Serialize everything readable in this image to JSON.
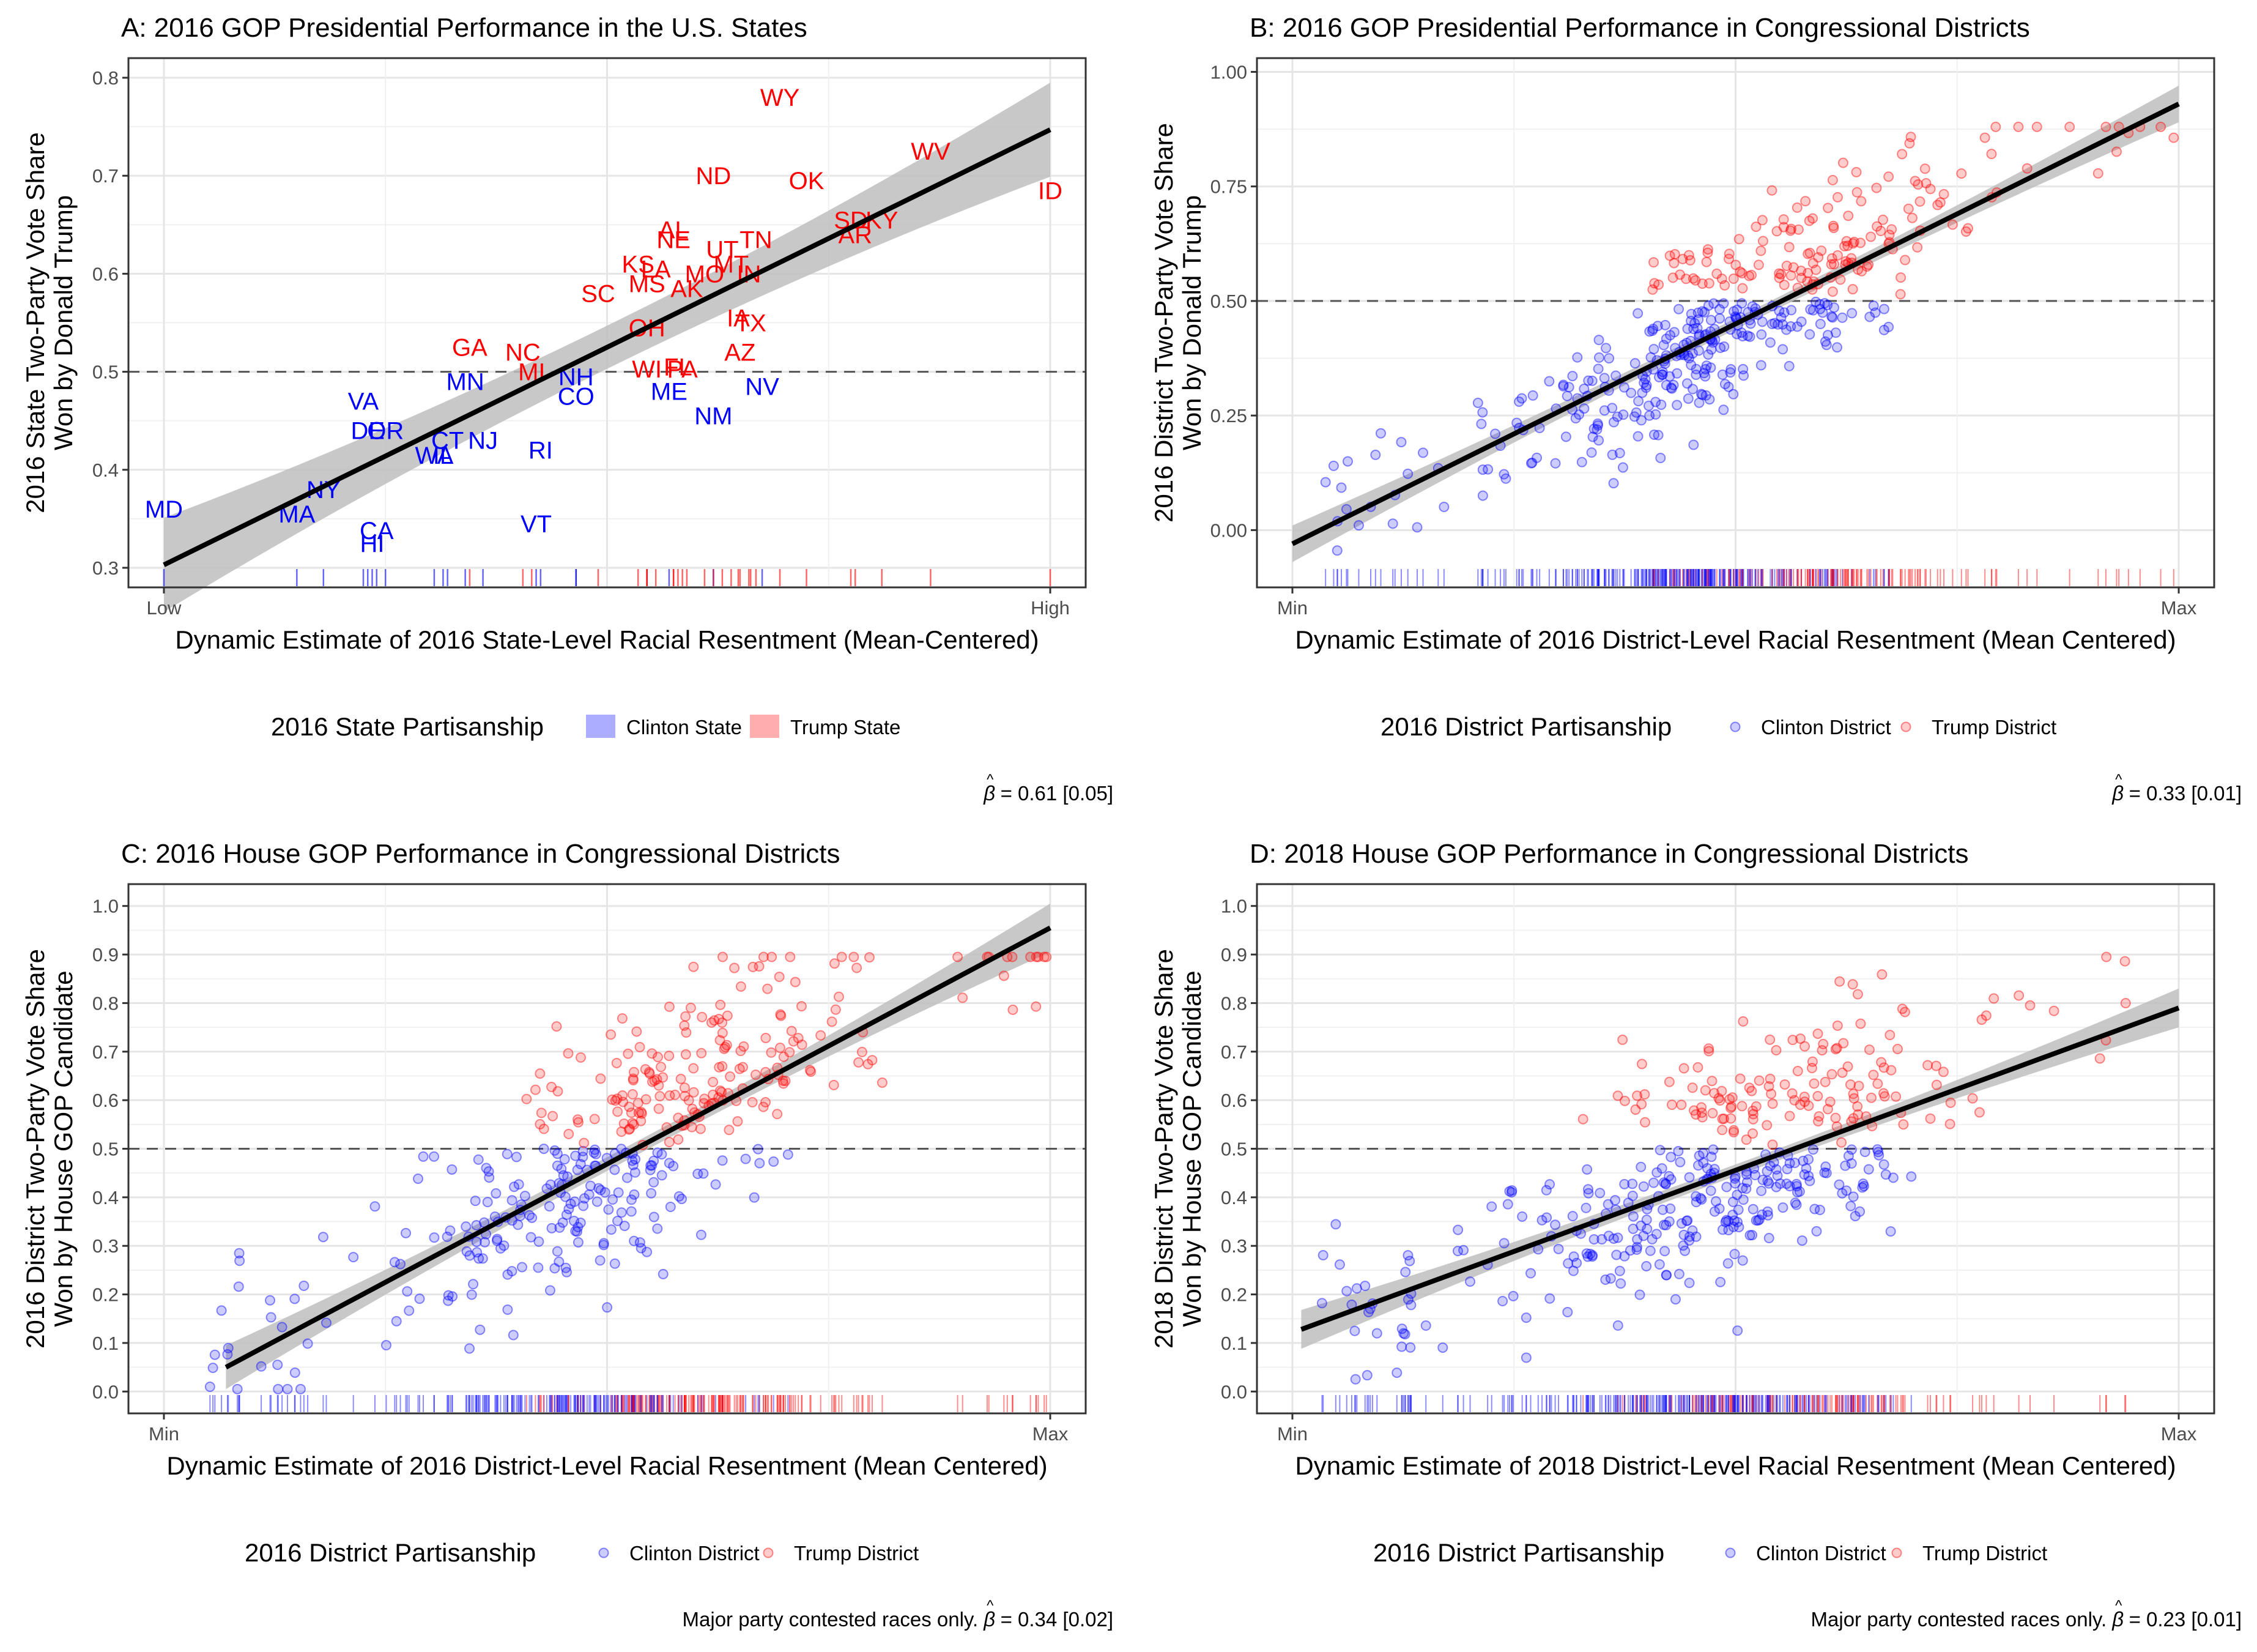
{
  "colors": {
    "clinton": "#0000ff",
    "trump": "#ff0000",
    "fit": "#000000",
    "band": "#bebebe",
    "grid": "#e5e5e5"
  },
  "chart_data": [
    {
      "panel": "A",
      "type": "scatter",
      "title": "A: 2016 GOP Presidential Performance in the U.S. States",
      "xlabel": "Dynamic Estimate of 2016 State-Level Racial Resentment (Mean-Centered)",
      "ylabel_lines": [
        "2016 State Two-Party Vote Share",
        "Won by Donald Trump"
      ],
      "xlim": [
        -0.04,
        1.04
      ],
      "ylim": [
        0.28,
        0.82
      ],
      "x_ticks": [
        {
          "value": 0,
          "label": "Low"
        },
        {
          "value": 1,
          "label": "High"
        }
      ],
      "y_ticks": [
        0.3,
        0.4,
        0.5,
        0.6,
        0.7,
        0.8
      ],
      "y_tick_labels": [
        "0.3",
        "0.4",
        "0.5",
        "0.6",
        "0.7",
        "0.8"
      ],
      "reference_line": 0.5,
      "fit": {
        "start": [
          0,
          0.303
        ],
        "end": [
          1,
          0.747
        ],
        "band_halfwidth": [
          0.048,
          0.022,
          0.048
        ]
      },
      "legend": {
        "title": "2016 State Partisanship",
        "style": "fill",
        "entries": [
          {
            "label": "Clinton State",
            "group": "clinton"
          },
          {
            "label": "Trump State",
            "group": "trump"
          }
        ]
      },
      "note_prefix": "",
      "beta_text": "= 0.61 [0.05]",
      "labels": [
        {
          "t": "MD",
          "x": 0.0,
          "y": 0.36,
          "g": "clinton"
        },
        {
          "t": "MA",
          "x": 0.15,
          "y": 0.355,
          "g": "clinton"
        },
        {
          "t": "NY",
          "x": 0.18,
          "y": 0.38,
          "g": "clinton"
        },
        {
          "t": "HI",
          "x": 0.235,
          "y": 0.325,
          "g": "clinton"
        },
        {
          "t": "CA",
          "x": 0.24,
          "y": 0.338,
          "g": "clinton"
        },
        {
          "t": "VA",
          "x": 0.225,
          "y": 0.47,
          "g": "clinton"
        },
        {
          "t": "DE",
          "x": 0.23,
          "y": 0.44,
          "g": "clinton"
        },
        {
          "t": "OR",
          "x": 0.25,
          "y": 0.44,
          "g": "clinton"
        },
        {
          "t": "CT",
          "x": 0.32,
          "y": 0.43,
          "g": "clinton"
        },
        {
          "t": "WA",
          "x": 0.305,
          "y": 0.415,
          "g": "clinton"
        },
        {
          "t": "IL",
          "x": 0.315,
          "y": 0.415,
          "g": "clinton"
        },
        {
          "t": "NJ",
          "x": 0.36,
          "y": 0.43,
          "g": "clinton"
        },
        {
          "t": "MN",
          "x": 0.34,
          "y": 0.49,
          "g": "clinton"
        },
        {
          "t": "RI",
          "x": 0.425,
          "y": 0.42,
          "g": "clinton"
        },
        {
          "t": "VT",
          "x": 0.42,
          "y": 0.345,
          "g": "clinton"
        },
        {
          "t": "CO",
          "x": 0.465,
          "y": 0.475,
          "g": "clinton"
        },
        {
          "t": "NH",
          "x": 0.465,
          "y": 0.495,
          "g": "clinton"
        },
        {
          "t": "ME",
          "x": 0.57,
          "y": 0.48,
          "g": "clinton"
        },
        {
          "t": "NM",
          "x": 0.62,
          "y": 0.455,
          "g": "clinton"
        },
        {
          "t": "NV",
          "x": 0.675,
          "y": 0.485,
          "g": "clinton"
        },
        {
          "t": "GA",
          "x": 0.345,
          "y": 0.525,
          "g": "trump"
        },
        {
          "t": "NC",
          "x": 0.405,
          "y": 0.52,
          "g": "trump"
        },
        {
          "t": "MI",
          "x": 0.415,
          "y": 0.5,
          "g": "trump"
        },
        {
          "t": "WI",
          "x": 0.545,
          "y": 0.503,
          "g": "trump"
        },
        {
          "t": "PA",
          "x": 0.585,
          "y": 0.503,
          "g": "trump"
        },
        {
          "t": "FL",
          "x": 0.58,
          "y": 0.505,
          "g": "trump"
        },
        {
          "t": "OH",
          "x": 0.545,
          "y": 0.545,
          "g": "trump"
        },
        {
          "t": "SC",
          "x": 0.49,
          "y": 0.58,
          "g": "trump"
        },
        {
          "t": "KS",
          "x": 0.535,
          "y": 0.61,
          "g": "trump"
        },
        {
          "t": "MS",
          "x": 0.545,
          "y": 0.59,
          "g": "trump"
        },
        {
          "t": "LA",
          "x": 0.555,
          "y": 0.605,
          "g": "trump"
        },
        {
          "t": "AK",
          "x": 0.59,
          "y": 0.585,
          "g": "trump"
        },
        {
          "t": "MO",
          "x": 0.61,
          "y": 0.6,
          "g": "trump"
        },
        {
          "t": "AL",
          "x": 0.575,
          "y": 0.645,
          "g": "trump"
        },
        {
          "t": "NE",
          "x": 0.575,
          "y": 0.635,
          "g": "trump"
        },
        {
          "t": "UT",
          "x": 0.63,
          "y": 0.625,
          "g": "trump"
        },
        {
          "t": "MT",
          "x": 0.64,
          "y": 0.61,
          "g": "trump"
        },
        {
          "t": "IN",
          "x": 0.66,
          "y": 0.6,
          "g": "trump"
        },
        {
          "t": "TN",
          "x": 0.668,
          "y": 0.635,
          "g": "trump"
        },
        {
          "t": "IA",
          "x": 0.648,
          "y": 0.555,
          "g": "trump"
        },
        {
          "t": "TX",
          "x": 0.662,
          "y": 0.55,
          "g": "trump"
        },
        {
          "t": "AZ",
          "x": 0.65,
          "y": 0.52,
          "g": "trump"
        },
        {
          "t": "ND",
          "x": 0.62,
          "y": 0.7,
          "g": "trump"
        },
        {
          "t": "WY",
          "x": 0.695,
          "y": 0.78,
          "g": "trump"
        },
        {
          "t": "OK",
          "x": 0.725,
          "y": 0.695,
          "g": "trump"
        },
        {
          "t": "SD",
          "x": 0.775,
          "y": 0.655,
          "g": "trump"
        },
        {
          "t": "KY",
          "x": 0.81,
          "y": 0.655,
          "g": "trump"
        },
        {
          "t": "AR",
          "x": 0.78,
          "y": 0.64,
          "g": "trump"
        },
        {
          "t": "WV",
          "x": 0.865,
          "y": 0.725,
          "g": "trump"
        },
        {
          "t": "ID",
          "x": 1.0,
          "y": 0.685,
          "g": "trump"
        }
      ]
    },
    {
      "panel": "B",
      "type": "scatter",
      "title": "B: 2016 GOP Presidential Performance in Congressional Districts",
      "xlabel": "Dynamic Estimate of 2016 District-Level Racial Resentment (Mean Centered)",
      "ylabel_lines": [
        "2016 District Two-Party Vote Share",
        "Won by Donald Trump"
      ],
      "xlim": [
        -0.04,
        1.04
      ],
      "ylim": [
        -0.125,
        1.03
      ],
      "x_ticks": [
        {
          "value": 0,
          "label": "Min"
        },
        {
          "value": 1,
          "label": "Max"
        }
      ],
      "y_ticks": [
        0,
        0.25,
        0.5,
        0.75,
        1.0
      ],
      "y_tick_labels": [
        "0.00",
        "0.25",
        "0.50",
        "0.75",
        "1.00"
      ],
      "reference_line": 0.5,
      "fit": {
        "start": [
          0,
          -0.03
        ],
        "end": [
          1,
          0.93
        ],
        "band_halfwidth": [
          0.04,
          0.012,
          0.04
        ]
      },
      "legend": {
        "title": "2016 District Partisanship",
        "style": "point",
        "entries": [
          {
            "label": "Clinton District",
            "group": "clinton"
          },
          {
            "label": "Trump District",
            "group": "trump"
          }
        ]
      },
      "note_prefix": "",
      "beta_text": "= 0.33 [0.01]",
      "sim": {
        "seed": 11,
        "n": 430,
        "center": 0.5,
        "spread": 0.13,
        "noise": 0.085,
        "slope": 0.96,
        "intercept": -0.03,
        "trump_shift": 0.05
      }
    },
    {
      "panel": "C",
      "type": "scatter",
      "title": "C: 2016 House GOP Performance in Congressional Districts",
      "xlabel": "Dynamic Estimate of 2016 District-Level Racial Resentment (Mean Centered)",
      "ylabel_lines": [
        "2016 District Two-Party Vote Share",
        "Won by House GOP Candidate"
      ],
      "xlim": [
        -0.04,
        1.04
      ],
      "ylim": [
        -0.045,
        1.045
      ],
      "x_ticks": [
        {
          "value": 0,
          "label": "Min"
        },
        {
          "value": 1,
          "label": "Max"
        }
      ],
      "y_ticks": [
        0,
        0.1,
        0.2,
        0.3,
        0.4,
        0.5,
        0.6,
        0.7,
        0.8,
        0.9,
        1.0
      ],
      "y_tick_labels": [
        "0.0",
        "0.1",
        "0.2",
        "0.3",
        "0.4",
        "0.5",
        "0.6",
        "0.7",
        "0.8",
        "0.9",
        "1.0"
      ],
      "reference_line": 0.5,
      "fit": {
        "start": [
          0.07,
          0.05
        ],
        "end": [
          1,
          0.955
        ],
        "band_halfwidth": [
          0.045,
          0.014,
          0.05
        ]
      },
      "legend": {
        "title": "2016 District Partisanship",
        "style": "point",
        "entries": [
          {
            "label": "Clinton District",
            "group": "clinton"
          },
          {
            "label": "Trump District",
            "group": "trump"
          }
        ]
      },
      "note_prefix": "Major party contested races only.",
      "beta_text": "= 0.34 [0.02]",
      "sim": {
        "seed": 23,
        "n": 400,
        "center": 0.52,
        "spread": 0.12,
        "noise": 0.1,
        "slope": 0.97,
        "intercept": -0.018,
        "trump_shift": 0.07
      }
    },
    {
      "panel": "D",
      "type": "scatter",
      "title": "D: 2018 House GOP Performance in Congressional Districts",
      "xlabel": "Dynamic Estimate of 2018 District-Level Racial Resentment (Mean Centered)",
      "ylabel_lines": [
        "2018 District Two-Party Vote Share",
        "Won by House GOP Candidate"
      ],
      "xlim": [
        -0.04,
        1.04
      ],
      "ylim": [
        -0.045,
        1.045
      ],
      "x_ticks": [
        {
          "value": 0,
          "label": "Min"
        },
        {
          "value": 1,
          "label": "Max"
        }
      ],
      "y_ticks": [
        0,
        0.1,
        0.2,
        0.3,
        0.4,
        0.5,
        0.6,
        0.7,
        0.8,
        0.9,
        1.0
      ],
      "y_tick_labels": [
        "0.0",
        "0.1",
        "0.2",
        "0.3",
        "0.4",
        "0.5",
        "0.6",
        "0.7",
        "0.8",
        "0.9",
        "1.0"
      ],
      "reference_line": 0.5,
      "fit": {
        "start": [
          0.01,
          0.128
        ],
        "end": [
          1,
          0.79
        ],
        "band_halfwidth": [
          0.04,
          0.012,
          0.04
        ]
      },
      "legend": {
        "title": "2016 District Partisanship",
        "style": "point",
        "entries": [
          {
            "label": "Clinton District",
            "group": "clinton"
          },
          {
            "label": "Trump District",
            "group": "trump"
          }
        ]
      },
      "note_prefix": "Major party contested races only.",
      "beta_text": "= 0.23 [0.01]",
      "sim": {
        "seed": 37,
        "n": 420,
        "center": 0.5,
        "spread": 0.13,
        "noise": 0.1,
        "slope": 0.67,
        "intercept": 0.12,
        "trump_shift": 0.09
      }
    }
  ]
}
